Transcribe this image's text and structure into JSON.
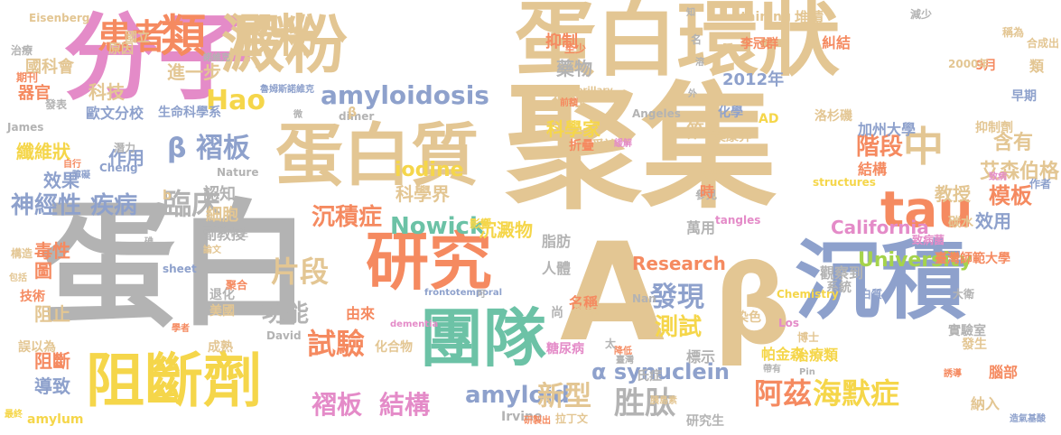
{
  "colors": {
    "orange": "#f58a60",
    "pink": "#e48bc8",
    "blue": "#8ea1cc",
    "green": "#a5d34c",
    "yellow": "#f5d64a",
    "beige": "#e3c693",
    "grey": "#b3b3b3",
    "teal": "#6cc2a6"
  },
  "words": [
    {
      "text": "分子",
      "color": "pink"
    },
    {
      "text": "蛋白",
      "color": "grey"
    },
    {
      "text": "聚集",
      "color": "beige"
    },
    {
      "text": "A",
      "color": "beige"
    },
    {
      "text": "β",
      "color": "beige"
    },
    {
      "text": "沉積",
      "color": "blue"
    },
    {
      "text": "澱粉",
      "color": "beige"
    },
    {
      "text": "蛋白環狀",
      "color": "beige"
    },
    {
      "text": "蛋白質",
      "color": "beige"
    },
    {
      "text": "研究",
      "color": "orange"
    },
    {
      "text": "團隊",
      "color": "teal"
    },
    {
      "text": "阻斷劑",
      "color": "yellow"
    },
    {
      "text": "tau",
      "color": "orange"
    },
    {
      "text": "中",
      "color": "beige"
    },
    {
      "text": "類",
      "color": "orange"
    },
    {
      "text": "澱粉",
      "color": "beige"
    },
    {
      "text": "患者",
      "color": "orange"
    },
    {
      "text": "β 褶板",
      "color": "blue"
    },
    {
      "text": "Hao",
      "color": "yellow"
    },
    {
      "text": "amyloidosis",
      "color": "blue"
    },
    {
      "text": "片段",
      "color": "beige"
    },
    {
      "text": "功能",
      "color": "grey"
    },
    {
      "text": "臨床",
      "color": "grey"
    },
    {
      "text": "神經性",
      "color": "blue"
    },
    {
      "text": "疾病",
      "color": "blue"
    },
    {
      "text": "沉積症",
      "color": "orange"
    },
    {
      "text": "Nowick",
      "color": "teal"
    },
    {
      "text": "沉澱物",
      "color": "yellow"
    },
    {
      "text": "發現",
      "color": "blue"
    },
    {
      "text": "測試",
      "color": "yellow"
    },
    {
      "text": "試驗",
      "color": "orange"
    },
    {
      "text": "褶板",
      "color": "pink"
    },
    {
      "text": "結構",
      "color": "pink"
    },
    {
      "text": "amyloid",
      "color": "blue"
    },
    {
      "text": "新型",
      "color": "beige"
    },
    {
      "text": "胜肽",
      "color": "grey"
    },
    {
      "text": "阿茲",
      "color": "orange"
    },
    {
      "text": "海默症",
      "color": "yellow"
    },
    {
      "text": "α synuclein",
      "color": "blue"
    },
    {
      "text": "含有",
      "color": "beige"
    },
    {
      "text": "階段",
      "color": "orange"
    },
    {
      "text": "模板",
      "color": "orange"
    },
    {
      "text": "California",
      "color": "pink"
    },
    {
      "text": "University",
      "color": "green"
    },
    {
      "text": "臺灣師範大學",
      "color": "orange"
    },
    {
      "text": "艾森伯格",
      "color": "beige"
    },
    {
      "text": "教授",
      "color": "beige"
    },
    {
      "text": "效用",
      "color": "blue"
    },
    {
      "text": "加州大學",
      "color": "blue"
    },
    {
      "text": "結構",
      "color": "orange"
    },
    {
      "text": "Research",
      "color": "orange"
    },
    {
      "text": "iodine",
      "color": "yellow"
    },
    {
      "text": "科學界",
      "color": "beige"
    },
    {
      "text": "2012年",
      "color": "blue"
    },
    {
      "text": "進一步",
      "color": "beige"
    },
    {
      "text": "科技",
      "color": "beige"
    },
    {
      "text": "作用",
      "color": "blue"
    },
    {
      "text": "效果",
      "color": "blue"
    },
    {
      "text": "纖維狀",
      "color": "yellow"
    },
    {
      "text": "阻止",
      "color": "beige"
    },
    {
      "text": "阻斷",
      "color": "orange"
    },
    {
      "text": "導致",
      "color": "blue"
    },
    {
      "text": "圖",
      "color": "orange"
    },
    {
      "text": "毒性",
      "color": "orange"
    },
    {
      "text": "國科會",
      "color": "beige"
    },
    {
      "text": "器官",
      "color": "orange"
    },
    {
      "text": "歐文分校",
      "color": "blue"
    },
    {
      "text": "生命科學系",
      "color": "blue"
    },
    {
      "text": "藥物",
      "color": "grey"
    },
    {
      "text": "神經",
      "color": "beige"
    },
    {
      "text": "科學家",
      "color": "yellow"
    },
    {
      "text": "抑制",
      "color": "orange"
    },
    {
      "text": "第2",
      "color": "beige"
    },
    {
      "text": "細胞",
      "color": "beige"
    },
    {
      "text": "認知",
      "color": "grey"
    },
    {
      "text": "副教授",
      "color": "grey"
    },
    {
      "text": "人體",
      "color": "grey"
    },
    {
      "text": "名稱",
      "color": "orange"
    },
    {
      "text": "脂肪",
      "color": "grey"
    },
    {
      "text": "標示",
      "color": "grey"
    },
    {
      "text": "帕金森",
      "color": "yellow"
    },
    {
      "text": "觀察到",
      "color": "grey"
    },
    {
      "text": "萬用",
      "color": "grey"
    },
    {
      "text": "碳水",
      "color": "beige"
    },
    {
      "text": "分校",
      "color": "beige"
    },
    {
      "text": "化學",
      "color": "blue"
    },
    {
      "text": "洛杉磯",
      "color": "beige"
    },
    {
      "text": "抑制劑",
      "color": "beige"
    },
    {
      "text": "李冠群",
      "color": "orange"
    },
    {
      "text": "堆積",
      "color": "beige"
    },
    {
      "text": "糾結",
      "color": "orange"
    },
    {
      "text": "staining",
      "color": "beige"
    },
    {
      "text": "早期",
      "color": "blue"
    },
    {
      "text": "9月",
      "color": "orange"
    },
    {
      "text": "類",
      "color": "beige"
    },
    {
      "text": "系統",
      "color": "grey"
    },
    {
      "text": "染色",
      "color": "beige"
    },
    {
      "text": "治療類",
      "color": "yellow"
    },
    {
      "text": "發生",
      "color": "beige"
    },
    {
      "text": "腦部",
      "color": "orange"
    },
    {
      "text": "納入",
      "color": "beige"
    },
    {
      "text": "Chemistry",
      "color": "yellow"
    },
    {
      "text": "白質",
      "color": "blue"
    },
    {
      "text": "大衛",
      "color": "grey"
    },
    {
      "text": "Irvine",
      "color": "grey"
    },
    {
      "text": "拉丁文",
      "color": "beige"
    },
    {
      "text": "氏症",
      "color": "grey"
    },
    {
      "text": "由來",
      "color": "orange"
    },
    {
      "text": "化合物",
      "color": "beige"
    },
    {
      "text": "成熟",
      "color": "beige"
    },
    {
      "text": "退化",
      "color": "grey"
    },
    {
      "text": "美國",
      "color": "beige"
    },
    {
      "text": "David",
      "color": "grey"
    },
    {
      "text": "技術",
      "color": "orange"
    },
    {
      "text": "誤以為",
      "color": "beige"
    },
    {
      "text": "amylum",
      "color": "yellow"
    },
    {
      "text": "James",
      "color": "grey"
    },
    {
      "text": "Eisenberg",
      "color": "beige"
    },
    {
      "text": "國立",
      "color": "beige"
    },
    {
      "text": "原因",
      "color": "beige"
    },
    {
      "text": "至少",
      "color": "orange"
    },
    {
      "text": "爭論",
      "color": "beige"
    },
    {
      "text": "折疊",
      "color": "orange"
    },
    {
      "text": "Angeles",
      "color": "grey"
    },
    {
      "text": "AD",
      "color": "yellow"
    },
    {
      "text": "structures",
      "color": "yellow"
    },
    {
      "text": "tangles",
      "color": "pink"
    },
    {
      "text": "sheet",
      "color": "blue"
    },
    {
      "text": "dementia",
      "color": "pink"
    },
    {
      "text": "frontotemporal",
      "color": "blue"
    },
    {
      "text": "Nature",
      "color": "grey"
    },
    {
      "text": "Cheng",
      "color": "blue"
    },
    {
      "text": "dimer",
      "color": "grey"
    },
    {
      "text": "neurofibrillary",
      "color": "beige"
    },
    {
      "text": "治療",
      "color": "grey"
    },
    {
      "text": "期刊",
      "color": "orange"
    },
    {
      "text": "發表",
      "color": "grey"
    },
    {
      "text": "潛力",
      "color": "grey"
    },
    {
      "text": "自行",
      "color": "orange"
    },
    {
      "text": "障礙",
      "color": "blue"
    },
    {
      "text": "構造",
      "color": "beige"
    },
    {
      "text": "包括",
      "color": "beige"
    },
    {
      "text": "論文",
      "color": "beige"
    },
    {
      "text": "碘",
      "color": "grey"
    },
    {
      "text": "聚合",
      "color": "orange"
    },
    {
      "text": "前額",
      "color": "orange"
    },
    {
      "text": "減少",
      "color": "grey"
    },
    {
      "text": "合成出",
      "color": "beige"
    },
    {
      "text": "參見",
      "color": "grey"
    },
    {
      "text": "致病",
      "color": "pink"
    },
    {
      "text": "作者",
      "color": "blue"
    },
    {
      "text": "2000年",
      "color": "beige"
    },
    {
      "text": "稱為",
      "color": "beige"
    },
    {
      "text": "學者",
      "color": "orange"
    },
    {
      "text": "研製出",
      "color": "orange"
    },
    {
      "text": "造氣基酸",
      "color": "blue"
    },
    {
      "text": "誘導",
      "color": "orange"
    },
    {
      "text": "降低",
      "color": "orange"
    },
    {
      "text": "臺灣",
      "color": "grey"
    },
    {
      "text": "溶",
      "color": "grey"
    },
    {
      "text": "名",
      "color": "grey"
    },
    {
      "text": "外",
      "color": "grey"
    },
    {
      "text": "知",
      "color": "grey"
    },
    {
      "text": "錯誤",
      "color": "beige"
    },
    {
      "text": "尚",
      "color": "grey"
    },
    {
      "text": "b",
      "color": "beige"
    },
    {
      "text": "β",
      "color": "beige"
    },
    {
      "text": "糖尿病",
      "color": "pink"
    },
    {
      "text": "研究生",
      "color": "grey"
    },
    {
      "text": "葉康昇",
      "color": "beige"
    },
    {
      "text": "時",
      "color": "orange"
    },
    {
      "text": "帶有",
      "color": "grey"
    },
    {
      "text": "Pin",
      "color": "grey"
    },
    {
      "text": "Los",
      "color": "pink"
    },
    {
      "text": "實驗室",
      "color": "grey"
    },
    {
      "text": "博士",
      "color": "beige"
    },
    {
      "text": "衍生",
      "color": "grey"
    },
    {
      "text": "影響",
      "color": "yellow"
    },
    {
      "text": "微",
      "color": "grey"
    },
    {
      "text": "諾維克",
      "color": "grey"
    },
    {
      "text": "魯姆斯諾維克",
      "color": "blue"
    },
    {
      "text": "腫",
      "color": "beige"
    },
    {
      "text": "致病菌",
      "color": "pink"
    },
    {
      "text": "可",
      "color": "grey"
    },
    {
      "text": "太",
      "color": "grey"
    },
    {
      "text": "Nan",
      "color": "grey"
    },
    {
      "text": "胰島素",
      "color": "beige"
    },
    {
      "text": "緩解",
      "color": "pink"
    },
    {
      "text": "最終",
      "color": "yellow"
    }
  ]
}
